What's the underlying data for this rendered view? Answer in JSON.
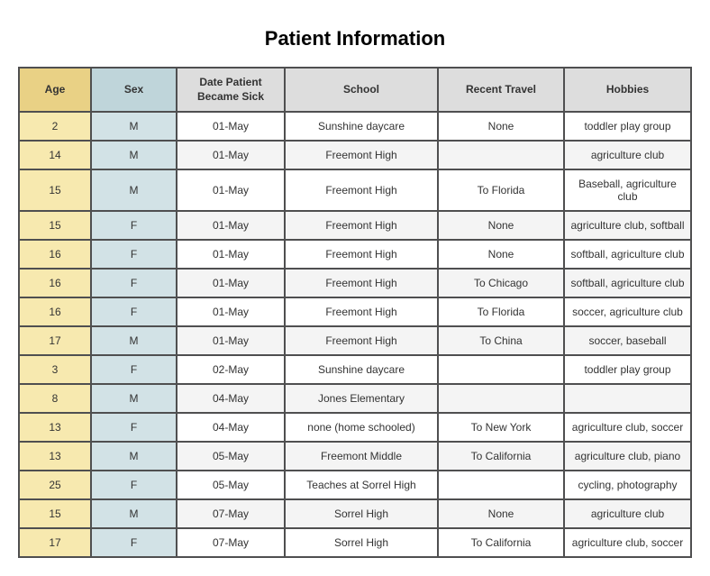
{
  "title": "Patient Information",
  "columns": [
    "Age",
    "Sex",
    "Date Patient Became Sick",
    "School",
    "Recent Travel",
    "Hobbies"
  ],
  "column_styles": {
    "age_header_bg": "#e9d185",
    "sex_header_bg": "#bfd5da",
    "other_header_bg": "#dddddd",
    "age_cell_bg": "#f7e9af",
    "sex_cell_bg": "#d2e2e6",
    "row_alt_bgs": [
      "#ffffff",
      "#f4f4f4"
    ],
    "border_color": "#4f4f50",
    "title_fontsize": 22,
    "header_fontsize": 12,
    "cell_fontsize": 12
  },
  "rows": [
    {
      "age": "2",
      "sex": "M",
      "date": "01-May",
      "school": "Sunshine daycare",
      "travel": "None",
      "hobbies": "toddler play group"
    },
    {
      "age": "14",
      "sex": "M",
      "date": "01-May",
      "school": "Freemont High",
      "travel": "",
      "hobbies": "agriculture club"
    },
    {
      "age": "15",
      "sex": "M",
      "date": "01-May",
      "school": "Freemont High",
      "travel": "To Florida",
      "hobbies": "Baseball, agriculture club"
    },
    {
      "age": "15",
      "sex": "F",
      "date": "01-May",
      "school": "Freemont High",
      "travel": "None",
      "hobbies": "agriculture club, softball"
    },
    {
      "age": "16",
      "sex": "F",
      "date": "01-May",
      "school": "Freemont High",
      "travel": "None",
      "hobbies": "softball, agriculture club"
    },
    {
      "age": "16",
      "sex": "F",
      "date": "01-May",
      "school": "Freemont High",
      "travel": "To Chicago",
      "hobbies": "softball, agriculture club"
    },
    {
      "age": "16",
      "sex": "F",
      "date": "01-May",
      "school": "Freemont High",
      "travel": "To Florida",
      "hobbies": "soccer, agriculture club"
    },
    {
      "age": "17",
      "sex": "M",
      "date": "01-May",
      "school": "Freemont High",
      "travel": "To China",
      "hobbies": "soccer, baseball"
    },
    {
      "age": "3",
      "sex": "F",
      "date": "02-May",
      "school": "Sunshine daycare",
      "travel": "",
      "hobbies": "toddler play group"
    },
    {
      "age": "8",
      "sex": "M",
      "date": "04-May",
      "school": "Jones Elementary",
      "travel": "",
      "hobbies": ""
    },
    {
      "age": "13",
      "sex": "F",
      "date": "04-May",
      "school": "none (home schooled)",
      "travel": "To New York",
      "hobbies": "agriculture club, soccer"
    },
    {
      "age": "13",
      "sex": "M",
      "date": "05-May",
      "school": "Freemont Middle",
      "travel": "To California",
      "hobbies": "agriculture club, piano"
    },
    {
      "age": "25",
      "sex": "F",
      "date": "05-May",
      "school": "Teaches at Sorrel High",
      "travel": "",
      "hobbies": "cycling, photography"
    },
    {
      "age": "15",
      "sex": "M",
      "date": "07-May",
      "school": "Sorrel High",
      "travel": "None",
      "hobbies": "agriculture club"
    },
    {
      "age": "17",
      "sex": "F",
      "date": "07-May",
      "school": "Sorrel High",
      "travel": "To California",
      "hobbies": "agriculture club, soccer"
    }
  ]
}
